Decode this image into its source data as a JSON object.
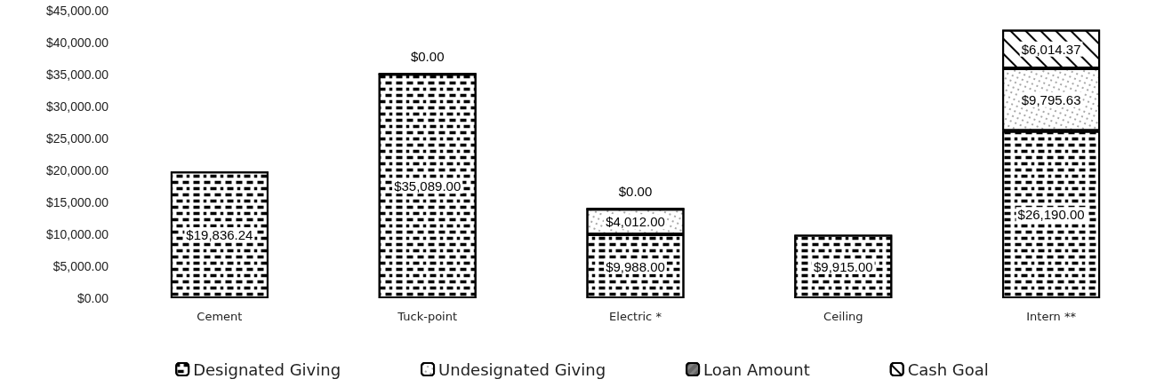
{
  "chart_data": {
    "type": "bar",
    "stacked": true,
    "grid": false,
    "legend": "bottom",
    "categories": [
      "Cement",
      "Tuck-point",
      "Electric *",
      "Ceiling",
      "Intern **"
    ],
    "ylim": [
      0,
      45000
    ],
    "yticks": [
      {
        "value": 0,
        "label": "$0.00"
      },
      {
        "value": 5000,
        "label": "$5,000.00"
      },
      {
        "value": 10000,
        "label": "$10,000.00"
      },
      {
        "value": 15000,
        "label": "$15,000.00"
      },
      {
        "value": 20000,
        "label": "$20,000.00"
      },
      {
        "value": 25000,
        "label": "$25,000.00"
      },
      {
        "value": 30000,
        "label": "$30,000.00"
      },
      {
        "value": 35000,
        "label": "$35,000.00"
      },
      {
        "value": 40000,
        "label": "$40,000.00"
      },
      {
        "value": 45000,
        "label": "$45,000.00"
      }
    ],
    "series": [
      {
        "name": "Designated Giving",
        "color": "#000000",
        "values": [
          19836.24,
          35089,
          9988,
          9915,
          26190
        ],
        "value_labels": [
          "$19,836.24",
          "$35,089.00",
          "$9,988.00",
          "$9,915.00",
          "$26,190.00"
        ]
      },
      {
        "name": "Undesignated Giving",
        "color": "#000000",
        "values": [
          null,
          0,
          4012,
          null,
          9795.63
        ],
        "value_labels": [
          null,
          "$0.00",
          "$4,012.00",
          null,
          "$9,795.63"
        ]
      },
      {
        "name": "Loan Amount",
        "color": "#808080",
        "values": [
          null,
          null,
          null,
          null,
          null
        ]
      },
      {
        "name": "Cash Goal",
        "color": "#000000",
        "values": [
          null,
          null,
          0,
          null,
          6014.37
        ],
        "value_labels": [
          null,
          null,
          "$0.00",
          null,
          "$6,014.37"
        ]
      }
    ]
  }
}
